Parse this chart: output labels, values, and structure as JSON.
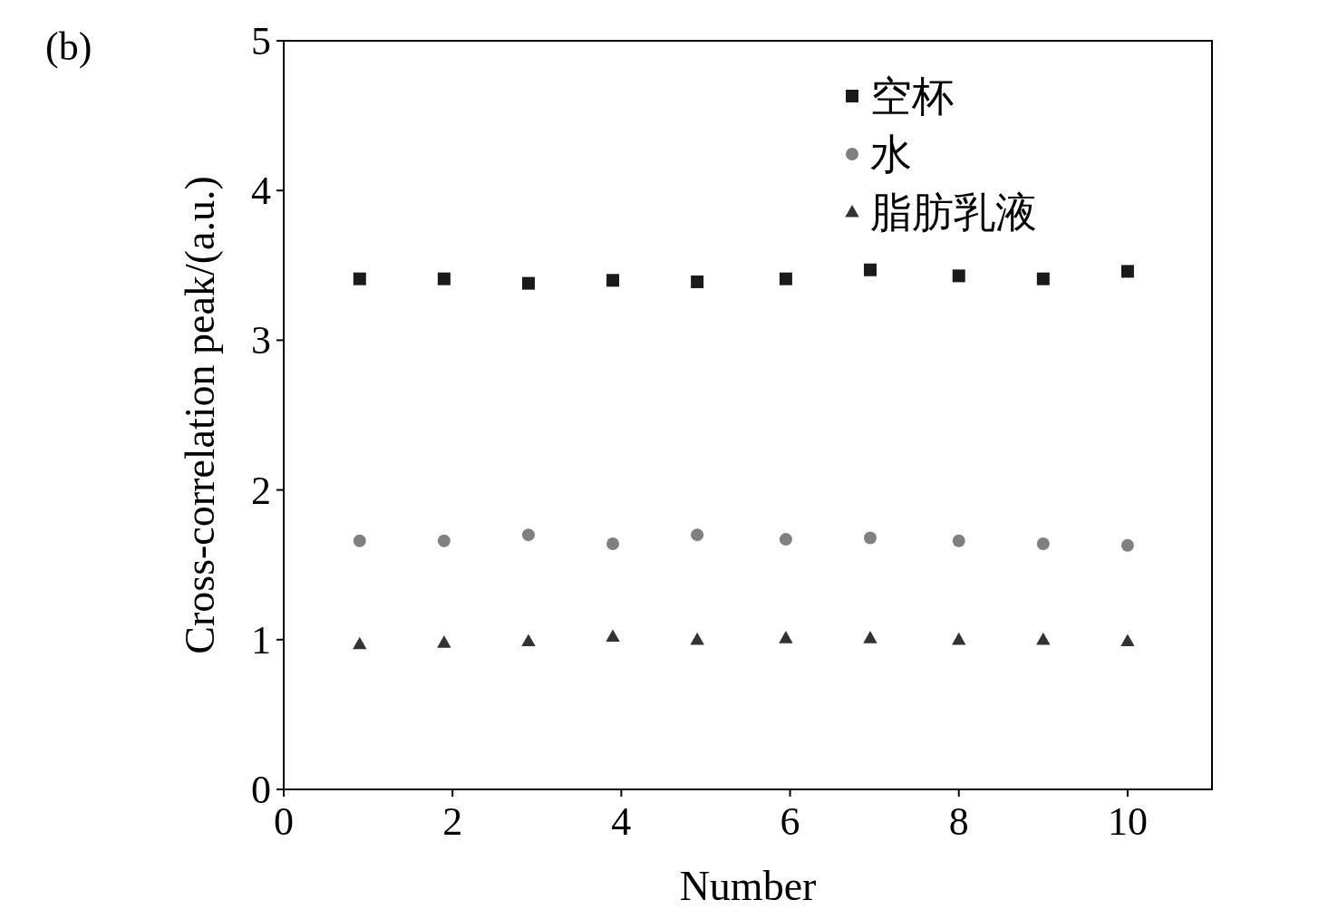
{
  "chart_data": {
    "type": "scatter",
    "xlabel": "Number",
    "ylabel": "Cross-correlation peak/(a.u.)",
    "annotations": [
      "(b)"
    ],
    "xlim": [
      0,
      11
    ],
    "xticks": [
      0,
      2,
      4,
      6,
      8,
      10
    ],
    "ylim": [
      0,
      5
    ],
    "yticks": [
      0,
      1,
      2,
      3,
      4,
      5
    ],
    "grid": false,
    "legend": "top right",
    "series": [
      {
        "name": "空杯",
        "color": "#1a1a1a",
        "marker": "square",
        "x": [
          0.9,
          1.9,
          2.9,
          3.9,
          4.9,
          5.95,
          6.95,
          8,
          9,
          10
        ],
        "values": [
          3.41,
          3.41,
          3.38,
          3.4,
          3.39,
          3.41,
          3.47,
          3.43,
          3.41,
          3.46
        ]
      },
      {
        "name": "水",
        "color": "#808080",
        "marker": "circle",
        "x": [
          0.9,
          1.9,
          2.9,
          3.9,
          4.9,
          5.95,
          6.95,
          8,
          9,
          10
        ],
        "values": [
          1.66,
          1.66,
          1.7,
          1.64,
          1.7,
          1.67,
          1.68,
          1.66,
          1.64,
          1.63
        ]
      },
      {
        "name": "脂肪乳液",
        "color": "#333333",
        "marker": "triangle",
        "x": [
          0.9,
          1.9,
          2.9,
          3.9,
          4.9,
          5.95,
          6.95,
          8,
          9,
          10
        ],
        "values": [
          0.97,
          0.98,
          0.99,
          1.02,
          1.0,
          1.01,
          1.01,
          1.0,
          1.0,
          0.99
        ]
      }
    ]
  }
}
